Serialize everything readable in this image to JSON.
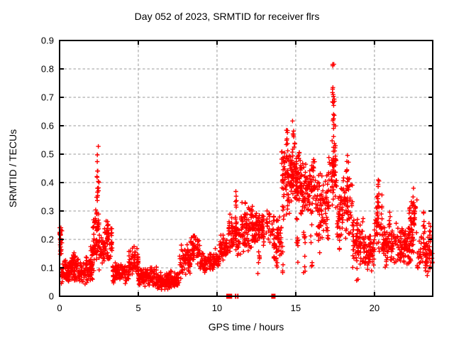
{
  "title": "Day 052 of 2023, SRMTID for receiver flrs",
  "chart_data": {
    "type": "scatter",
    "title": "Day 052 of 2023, SRMTID for receiver flrs",
    "xlabel": "GPS time / hours",
    "ylabel": "SRMTID / TECUs",
    "xlim": [
      0,
      23.7
    ],
    "ylim": [
      0,
      0.9
    ],
    "xticks": [
      0,
      5,
      10,
      15,
      20
    ],
    "xtick_labels": [
      "0",
      "5",
      "10",
      "15",
      "20"
    ],
    "yticks": [
      0,
      0.1,
      0.2,
      0.3,
      0.4,
      0.5,
      0.6,
      0.7,
      0.8,
      0.9
    ],
    "ytick_labels": [
      "0",
      "0.1",
      "0.2",
      "0.3",
      "0.4",
      "0.5",
      "0.6",
      "0.7",
      "0.8",
      "0.9"
    ],
    "grid": true,
    "legend": "none",
    "marker": "plus",
    "marker_color": "#ff0000",
    "grid_color": "#999999",
    "frame_color": "#000000",
    "background": "#ffffff",
    "notable_points": {
      "max_value": 0.855,
      "max_value_hour": 17.35,
      "secondary_peaks": [
        {
          "hour": 2.45,
          "value": 0.565
        },
        {
          "hour": 14.45,
          "value": 0.66
        },
        {
          "hour": 11.2,
          "value": 0.385
        },
        {
          "hour": 20.25,
          "value": 0.46
        },
        {
          "hour": 22.45,
          "value": 0.4
        }
      ]
    },
    "envelope_note": "Dense ~2600-point day-long scatter; values below are estimated density bands [startHour, endHour, yMin, yMax, count] and vertical spike columns [hour, yMin, yMax, count] read from the pixels.",
    "bands": [
      [
        0.0,
        0.15,
        0.13,
        0.26,
        25
      ],
      [
        0.1,
        0.9,
        0.04,
        0.13,
        90
      ],
      [
        0.65,
        1.0,
        0.1,
        0.16,
        25
      ],
      [
        0.9,
        2.1,
        0.04,
        0.14,
        110
      ],
      [
        1.95,
        2.2,
        0.08,
        0.22,
        20
      ],
      [
        2.1,
        2.4,
        0.1,
        0.32,
        35
      ],
      [
        2.5,
        2.8,
        0.08,
        0.22,
        30
      ],
      [
        2.8,
        3.35,
        0.1,
        0.27,
        55
      ],
      [
        3.35,
        4.4,
        0.04,
        0.12,
        100
      ],
      [
        4.4,
        5.0,
        0.06,
        0.18,
        55
      ],
      [
        5.0,
        6.2,
        0.03,
        0.11,
        110
      ],
      [
        6.2,
        7.6,
        0.02,
        0.09,
        140
      ],
      [
        7.6,
        8.3,
        0.06,
        0.19,
        65
      ],
      [
        8.3,
        8.9,
        0.11,
        0.22,
        50
      ],
      [
        8.9,
        9.6,
        0.08,
        0.16,
        55
      ],
      [
        9.6,
        10.15,
        0.08,
        0.17,
        45
      ],
      [
        10.15,
        10.7,
        0.12,
        0.22,
        50
      ],
      [
        10.7,
        11.5,
        0.14,
        0.3,
        70
      ],
      [
        11.5,
        12.3,
        0.15,
        0.34,
        90
      ],
      [
        12.3,
        13.0,
        0.16,
        0.31,
        75
      ],
      [
        13.1,
        13.6,
        0.18,
        0.32,
        25
      ],
      [
        13.6,
        14.1,
        0.1,
        0.3,
        50
      ],
      [
        14.1,
        14.6,
        0.28,
        0.56,
        55
      ],
      [
        14.6,
        15.3,
        0.3,
        0.56,
        90
      ],
      [
        15.3,
        16.2,
        0.28,
        0.5,
        105
      ],
      [
        16.2,
        17.1,
        0.16,
        0.46,
        90
      ],
      [
        17.1,
        17.6,
        0.3,
        0.55,
        45
      ],
      [
        17.6,
        18.0,
        0.15,
        0.4,
        45
      ],
      [
        18.0,
        18.6,
        0.18,
        0.48,
        55
      ],
      [
        18.6,
        19.3,
        0.08,
        0.3,
        65
      ],
      [
        19.3,
        20.0,
        0.08,
        0.22,
        65
      ],
      [
        20.0,
        20.5,
        0.13,
        0.4,
        45
      ],
      [
        20.5,
        21.3,
        0.1,
        0.26,
        75
      ],
      [
        21.3,
        22.4,
        0.1,
        0.26,
        105
      ],
      [
        22.2,
        22.7,
        0.15,
        0.35,
        40
      ],
      [
        22.7,
        23.7,
        0.07,
        0.22,
        70
      ]
    ],
    "columns": [
      [
        2.35,
        0.12,
        0.45,
        12
      ],
      [
        2.45,
        0.15,
        0.565,
        22
      ],
      [
        3.05,
        0.13,
        0.27,
        10
      ],
      [
        4.75,
        0.09,
        0.19,
        8
      ],
      [
        8.5,
        0.12,
        0.22,
        10
      ],
      [
        11.2,
        0.16,
        0.385,
        12
      ],
      [
        12.65,
        0.04,
        0.32,
        14
      ],
      [
        13.8,
        0.08,
        0.25,
        10
      ],
      [
        14.2,
        0.08,
        0.32,
        10
      ],
      [
        14.45,
        0.3,
        0.66,
        16
      ],
      [
        14.85,
        0.38,
        0.62,
        12
      ],
      [
        15.1,
        0.06,
        0.3,
        10
      ],
      [
        15.55,
        0.08,
        0.3,
        10
      ],
      [
        16.0,
        0.1,
        0.3,
        8
      ],
      [
        16.5,
        0.1,
        0.3,
        8
      ],
      [
        17.35,
        0.32,
        0.86,
        26
      ],
      [
        17.45,
        0.45,
        0.83,
        12
      ],
      [
        18.3,
        0.25,
        0.5,
        12
      ],
      [
        18.9,
        0.05,
        0.25,
        8
      ],
      [
        20.25,
        0.25,
        0.46,
        12
      ],
      [
        20.95,
        0.15,
        0.3,
        8
      ],
      [
        22.45,
        0.15,
        0.4,
        14
      ],
      [
        23.15,
        0.12,
        0.33,
        10
      ],
      [
        23.5,
        0.1,
        0.26,
        8
      ]
    ],
    "zero_axis_markers": [
      {
        "hour": 10.72,
        "w": 6
      },
      {
        "hour": 10.85,
        "w": 5
      },
      {
        "hour": 11.18,
        "w": 2
      },
      {
        "hour": 11.32,
        "w": 2
      },
      {
        "hour": 13.58,
        "w": 6
      }
    ]
  }
}
